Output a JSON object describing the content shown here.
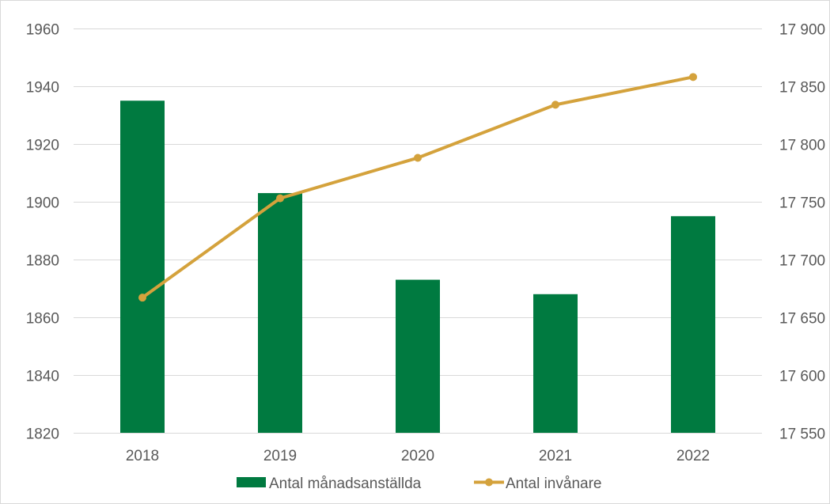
{
  "chart_data": {
    "type": "bar",
    "categories": [
      "2018",
      "2019",
      "2020",
      "2021",
      "2022"
    ],
    "series": [
      {
        "name": "Antal månadsanställda",
        "type": "bar",
        "axis": "left",
        "color": "#007a40",
        "values": [
          1935,
          1903,
          1873,
          1868,
          1895
        ]
      },
      {
        "name": "Antal invånare",
        "type": "line",
        "axis": "right",
        "color": "#d4a23c",
        "values": [
          17667,
          17753,
          17788,
          17834,
          17858
        ]
      }
    ],
    "y_left": {
      "range": [
        1820,
        1960
      ],
      "ticks": [
        1820,
        1840,
        1860,
        1880,
        1900,
        1920,
        1940,
        1960
      ],
      "tick_labels": [
        "1820",
        "1840",
        "1860",
        "1880",
        "1900",
        "1920",
        "1940",
        "1960"
      ]
    },
    "y_right": {
      "range": [
        17550,
        17900
      ],
      "ticks": [
        17550,
        17600,
        17650,
        17700,
        17750,
        17800,
        17850,
        17900
      ],
      "tick_labels": [
        "17 550",
        "17 600",
        "17 650",
        "17 700",
        "17 750",
        "17 800",
        "17 850",
        "17 900"
      ]
    },
    "grid": true,
    "legend_position": "bottom",
    "title": "",
    "xlabel": "",
    "ylabel": ""
  }
}
